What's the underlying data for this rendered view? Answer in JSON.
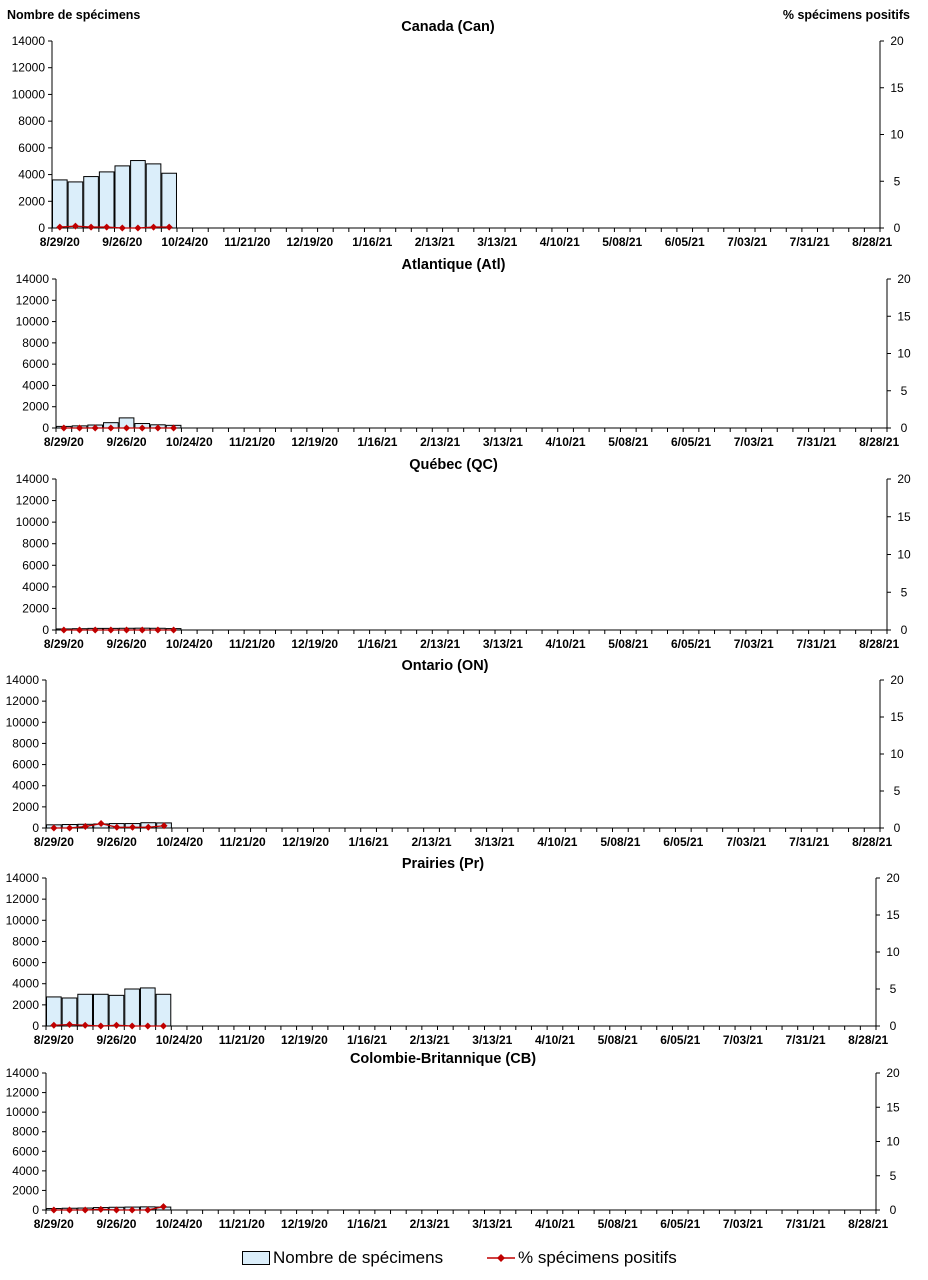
{
  "header": {
    "left_axis_title": "Nombre de spécimens",
    "right_axis_title": "% spécimens positifs"
  },
  "colors": {
    "bar_fill": "#dbeefa",
    "bar_stroke": "#000000",
    "line": "#c00000"
  },
  "legend": {
    "bar_label": "Nombre de spécimens",
    "line_label": "% spécimens positifs"
  },
  "chart_data": [
    {
      "type": "bar",
      "title": "Canada (Can)",
      "ylim": [
        0,
        14000
      ],
      "y2lim": [
        0,
        20
      ],
      "yticks": [
        "0",
        "2000",
        "4000",
        "6000",
        "8000",
        "10000",
        "12000",
        "14000"
      ],
      "y2ticks": [
        "0",
        "5",
        "10",
        "15",
        "20"
      ],
      "xtick_labels": [
        "8/29/20",
        "9/26/20",
        "10/24/20",
        "11/21/20",
        "12/19/20",
        "1/16/21",
        "2/13/21",
        "3/13/21",
        "4/10/21",
        "5/08/21",
        "6/05/21",
        "7/03/21",
        "7/31/21",
        "8/28/21"
      ],
      "weeks": [
        "8/29/20",
        "9/05/20",
        "9/12/20",
        "9/19/20",
        "9/26/20",
        "10/03/20",
        "10/10/20",
        "10/17/20"
      ],
      "series": [
        {
          "name": "Nombre de spécimens",
          "type": "bar",
          "values": [
            3600,
            3450,
            3850,
            4200,
            4650,
            5050,
            4800,
            4100
          ]
        },
        {
          "name": "% spécimens positifs",
          "type": "line",
          "axis": "right",
          "values": [
            0.1,
            0.2,
            0.1,
            0.1,
            0.0,
            0.0,
            0.1,
            0.1
          ]
        }
      ]
    },
    {
      "type": "bar",
      "title": "Atlantique (Atl)",
      "ylim": [
        0,
        14000
      ],
      "y2lim": [
        0,
        20
      ],
      "yticks": [
        "0",
        "2000",
        "4000",
        "6000",
        "8000",
        "10000",
        "12000",
        "14000"
      ],
      "y2ticks": [
        "0",
        "5",
        "10",
        "15",
        "20"
      ],
      "xtick_labels": [
        "8/29/20",
        "9/26/20",
        "10/24/20",
        "11/21/20",
        "12/19/20",
        "1/16/21",
        "2/13/21",
        "3/13/21",
        "4/10/21",
        "5/08/21",
        "6/05/21",
        "7/03/21",
        "7/31/21",
        "8/28/21"
      ],
      "weeks": [
        "8/29/20",
        "9/05/20",
        "9/12/20",
        "9/19/20",
        "9/26/20",
        "10/03/20",
        "10/10/20",
        "10/17/20"
      ],
      "series": [
        {
          "name": "Nombre de spécimens",
          "type": "bar",
          "values": [
            150,
            200,
            280,
            500,
            950,
            420,
            300,
            250
          ]
        },
        {
          "name": "% spécimens positifs",
          "type": "line",
          "axis": "right",
          "values": [
            0.0,
            0.0,
            0.0,
            0.0,
            0.0,
            0.0,
            0.0,
            0.0
          ]
        }
      ]
    },
    {
      "type": "bar",
      "title": "Québec (QC)",
      "ylim": [
        0,
        14000
      ],
      "y2lim": [
        0,
        20
      ],
      "yticks": [
        "0",
        "2000",
        "4000",
        "6000",
        "8000",
        "10000",
        "12000",
        "14000"
      ],
      "y2ticks": [
        "0",
        "5",
        "10",
        "15",
        "20"
      ],
      "xtick_labels": [
        "8/29/20",
        "9/26/20",
        "10/24/20",
        "11/21/20",
        "12/19/20",
        "1/16/21",
        "2/13/21",
        "3/13/21",
        "4/10/21",
        "5/08/21",
        "6/05/21",
        "7/03/21",
        "7/31/21",
        "8/28/21"
      ],
      "weeks": [
        "8/29/20",
        "9/05/20",
        "9/12/20",
        "9/19/20",
        "9/26/20",
        "10/03/20",
        "10/10/20",
        "10/17/20"
      ],
      "series": [
        {
          "name": "Nombre de spécimens",
          "type": "bar",
          "values": [
            100,
            120,
            150,
            150,
            160,
            170,
            160,
            130
          ]
        },
        {
          "name": "% spécimens positifs",
          "type": "line",
          "axis": "right",
          "values": [
            0.0,
            0.0,
            0.0,
            0.0,
            0.0,
            0.0,
            0.0,
            0.0
          ]
        }
      ]
    },
    {
      "type": "bar",
      "title": "Ontario (ON)",
      "ylim": [
        0,
        14000
      ],
      "y2lim": [
        0,
        20
      ],
      "yticks": [
        "0",
        "2000",
        "4000",
        "6000",
        "8000",
        "10000",
        "12000",
        "14000"
      ],
      "y2ticks": [
        "0",
        "5",
        "10",
        "15",
        "20"
      ],
      "xtick_labels": [
        "8/29/20",
        "9/26/20",
        "10/24/20",
        "11/21/20",
        "12/19/20",
        "1/16/21",
        "2/13/21",
        "3/13/21",
        "4/10/21",
        "5/08/21",
        "6/05/21",
        "7/03/21",
        "7/31/21",
        "8/28/21"
      ],
      "weeks": [
        "8/29/20",
        "9/05/20",
        "9/12/20",
        "9/19/20",
        "9/26/20",
        "10/03/20",
        "10/10/20",
        "10/17/20"
      ],
      "series": [
        {
          "name": "Nombre de spécimens",
          "type": "bar",
          "values": [
            300,
            330,
            350,
            380,
            420,
            420,
            500,
            480
          ]
        },
        {
          "name": "% spécimens positifs",
          "type": "line",
          "axis": "right",
          "values": [
            0.0,
            0.0,
            0.2,
            0.6,
            0.1,
            0.1,
            0.1,
            0.3
          ]
        }
      ]
    },
    {
      "type": "bar",
      "title": "Prairies (Pr)",
      "ylim": [
        0,
        14000
      ],
      "y2lim": [
        0,
        20
      ],
      "yticks": [
        "0",
        "2000",
        "4000",
        "6000",
        "8000",
        "10000",
        "12000",
        "14000"
      ],
      "y2ticks": [
        "0",
        "5",
        "10",
        "15",
        "20"
      ],
      "xtick_labels": [
        "8/29/20",
        "9/26/20",
        "10/24/20",
        "11/21/20",
        "12/19/20",
        "1/16/21",
        "2/13/21",
        "3/13/21",
        "4/10/21",
        "5/08/21",
        "6/05/21",
        "7/03/21",
        "7/31/21",
        "8/28/21"
      ],
      "weeks": [
        "8/29/20",
        "9/05/20",
        "9/12/20",
        "9/19/20",
        "9/26/20",
        "10/03/20",
        "10/10/20",
        "10/17/20"
      ],
      "series": [
        {
          "name": "Nombre de spécimens",
          "type": "bar",
          "values": [
            2750,
            2650,
            3000,
            3000,
            2900,
            3500,
            3600,
            3000
          ]
        },
        {
          "name": "% spécimens positifs",
          "type": "line",
          "axis": "right",
          "values": [
            0.1,
            0.2,
            0.1,
            0.0,
            0.1,
            0.0,
            0.0,
            0.0
          ]
        }
      ]
    },
    {
      "type": "bar",
      "title": "Colombie-Britannique (CB)",
      "ylim": [
        0,
        14000
      ],
      "y2lim": [
        0,
        20
      ],
      "yticks": [
        "0",
        "2000",
        "4000",
        "6000",
        "8000",
        "10000",
        "12000",
        "14000"
      ],
      "y2ticks": [
        "0",
        "5",
        "10",
        "15",
        "20"
      ],
      "xtick_labels": [
        "8/29/20",
        "9/26/20",
        "10/24/20",
        "11/21/20",
        "12/19/20",
        "1/16/21",
        "2/13/21",
        "3/13/21",
        "4/10/21",
        "5/08/21",
        "6/05/21",
        "7/03/21",
        "7/31/21",
        "8/28/21"
      ],
      "weeks": [
        "8/29/20",
        "9/05/20",
        "9/12/20",
        "9/19/20",
        "9/26/20",
        "10/03/20",
        "10/10/20",
        "10/17/20"
      ],
      "series": [
        {
          "name": "Nombre de spécimens",
          "type": "bar",
          "values": [
            150,
            180,
            200,
            250,
            280,
            300,
            320,
            300
          ]
        },
        {
          "name": "% spécimens positifs",
          "type": "line",
          "axis": "right",
          "values": [
            0.0,
            0.0,
            0.0,
            0.1,
            0.0,
            0.0,
            0.0,
            0.5
          ]
        }
      ]
    }
  ]
}
